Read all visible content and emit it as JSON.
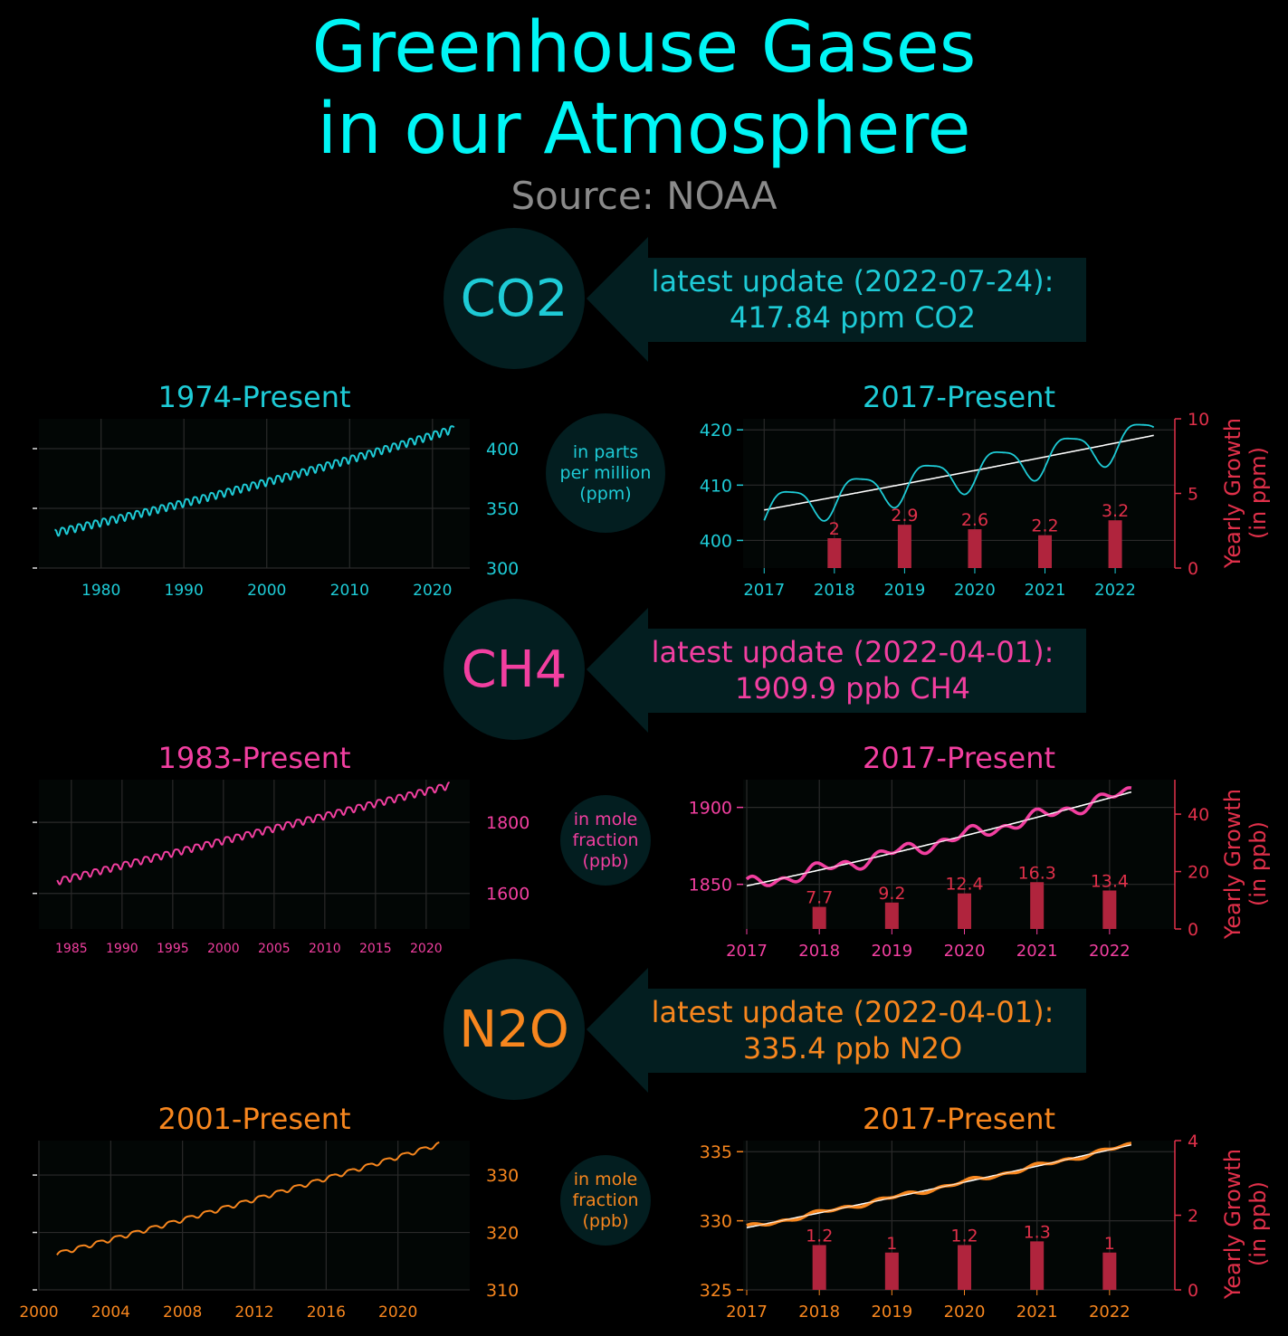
{
  "header": {
    "title_line1": "Greenhouse Gases",
    "title_line2": "in our Atmosphere",
    "source": "Source: NOAA"
  },
  "colors": {
    "co2": "#1ecbd6",
    "ch4": "#f23fa0",
    "n2o": "#f7861e",
    "growth_bar": "#b0243d",
    "growth_axis": "#e0304a",
    "panel_bg": "#000000",
    "plot_bg": "#020605",
    "bubble_bg": "#031e20"
  },
  "sections": [
    {
      "gas": "CO2",
      "update_line1": "latest update (2022-07-24):",
      "update_line2": "417.84 ppm CO2",
      "unit_lines": [
        "in parts",
        "per million",
        "(ppm)"
      ],
      "growth_label_line1": "Yearly Growth",
      "growth_label_line2": "(in ppm)"
    },
    {
      "gas": "CH4",
      "update_line1": "latest update (2022-04-01):",
      "update_line2": "1909.9 ppb CH4",
      "unit_lines": [
        "in mole",
        "fraction",
        "(ppb)"
      ],
      "growth_label_line1": "Yearly Growth",
      "growth_label_line2": "(in ppb)"
    },
    {
      "gas": "N2O",
      "update_line1": "latest update (2022-04-01):",
      "update_line2": "335.4 ppb N2O",
      "unit_lines": [
        "in mole",
        "fraction",
        "(ppb)"
      ],
      "growth_label_line1": "Yearly Growth",
      "growth_label_line2": "(in ppb)"
    }
  ],
  "chart_data": [
    {
      "id": "co2-long",
      "type": "line",
      "title": "1974-Present",
      "x_range": [
        1974.4,
        2022.6
      ],
      "xlim": [
        1972.5,
        2024.5
      ],
      "ylim": [
        300,
        425
      ],
      "xticks": [
        1980,
        1990,
        2000,
        2010,
        2020
      ],
      "yticks": [
        300,
        350,
        400
      ],
      "trend": {
        "start": 330,
        "end": 417,
        "curvature": 15,
        "seasonal_amplitude": 3
      },
      "series": [
        {
          "values_described_by": "trend"
        }
      ]
    },
    {
      "id": "co2-recent",
      "type": "line",
      "title": "2017-Present",
      "x_range": [
        2017.0,
        2022.55
      ],
      "xlim": [
        2016.7,
        2022.85
      ],
      "ylim": [
        395,
        422
      ],
      "xticks": [
        2017,
        2018,
        2019,
        2020,
        2021,
        2022
      ],
      "yticks": [
        400,
        410,
        420
      ],
      "trend": {
        "start": 405.5,
        "end": 419,
        "curvature": 0.6,
        "seasonal_amplitude": 3.2
      },
      "growth": {
        "ylim": [
          0,
          10
        ],
        "yticks": [
          0,
          5,
          10
        ],
        "years": [
          2018,
          2019,
          2020,
          2021,
          2022
        ],
        "values": [
          2,
          2.9,
          2.6,
          2.2,
          3.2
        ],
        "labels": [
          "2",
          "2.9",
          "2.6",
          "2.2",
          "3.2"
        ]
      }
    },
    {
      "id": "ch4-long",
      "type": "line",
      "title": "1983-Present",
      "x_range": [
        1983.6,
        2022.3
      ],
      "xlim": [
        1981.8,
        2024.3
      ],
      "ylim": [
        1500,
        1920
      ],
      "xticks": [
        1985,
        1990,
        1995,
        2000,
        2005,
        2010,
        2015,
        2020
      ],
      "yticks": [
        1600,
        1800
      ],
      "trend": {
        "start": 1635,
        "end": 1905,
        "curvature": 0,
        "seasonal_amplitude": 9
      },
      "series": [
        {
          "values_described_by": "trend"
        }
      ]
    },
    {
      "id": "ch4-recent",
      "type": "line",
      "title": "2017-Present",
      "x_range": [
        2017.0,
        2022.3
      ],
      "xlim": [
        2016.95,
        2022.9
      ],
      "ylim": [
        1821,
        1918
      ],
      "xticks": [
        2017,
        2018,
        2019,
        2020,
        2021,
        2022
      ],
      "yticks": [
        1850,
        1900
      ],
      "trend": {
        "start": 1849,
        "end": 1910,
        "curvature": 8,
        "seasonal_amplitude": 7
      },
      "growth": {
        "ylim": [
          0,
          52
        ],
        "yticks": [
          0,
          20,
          40
        ],
        "years": [
          2018,
          2019,
          2020,
          2021,
          2022
        ],
        "values": [
          7.7,
          9.2,
          12.4,
          16.3,
          13.4
        ],
        "labels": [
          "7.7",
          "9.2",
          "12.4",
          "16.3",
          "13.4"
        ]
      }
    },
    {
      "id": "n2o-long",
      "type": "line",
      "title": "2001-Present",
      "x_range": [
        2001.0,
        2022.3
      ],
      "xlim": [
        2000,
        2024
      ],
      "ylim": [
        310,
        336
      ],
      "xticks": [
        2000,
        2004,
        2008,
        2012,
        2016,
        2020
      ],
      "yticks": [
        310,
        320,
        330
      ],
      "trend": {
        "start": 316.3,
        "end": 335.4,
        "curvature": 1.5,
        "seasonal_amplitude": 0.35
      },
      "series": [
        {
          "values_described_by": "trend"
        }
      ]
    },
    {
      "id": "n2o-recent",
      "type": "line",
      "title": "2017-Present",
      "x_range": [
        2017.0,
        2022.3
      ],
      "xlim": [
        2016.95,
        2022.9
      ],
      "ylim": [
        325,
        335.8
      ],
      "xticks": [
        2017,
        2018,
        2019,
        2020,
        2021,
        2022
      ],
      "yticks": [
        325,
        330,
        335
      ],
      "trend": {
        "start": 329.5,
        "end": 335.5,
        "curvature": 0.4,
        "seasonal_amplitude": 0.25
      },
      "growth": {
        "ylim": [
          0,
          4
        ],
        "yticks": [
          0,
          2,
          4
        ],
        "years": [
          2018,
          2019,
          2020,
          2021,
          2022
        ],
        "values": [
          1.2,
          1,
          1.2,
          1.3,
          1
        ],
        "labels": [
          "1.2",
          "1",
          "1.2",
          "1.3",
          "1"
        ]
      }
    }
  ]
}
